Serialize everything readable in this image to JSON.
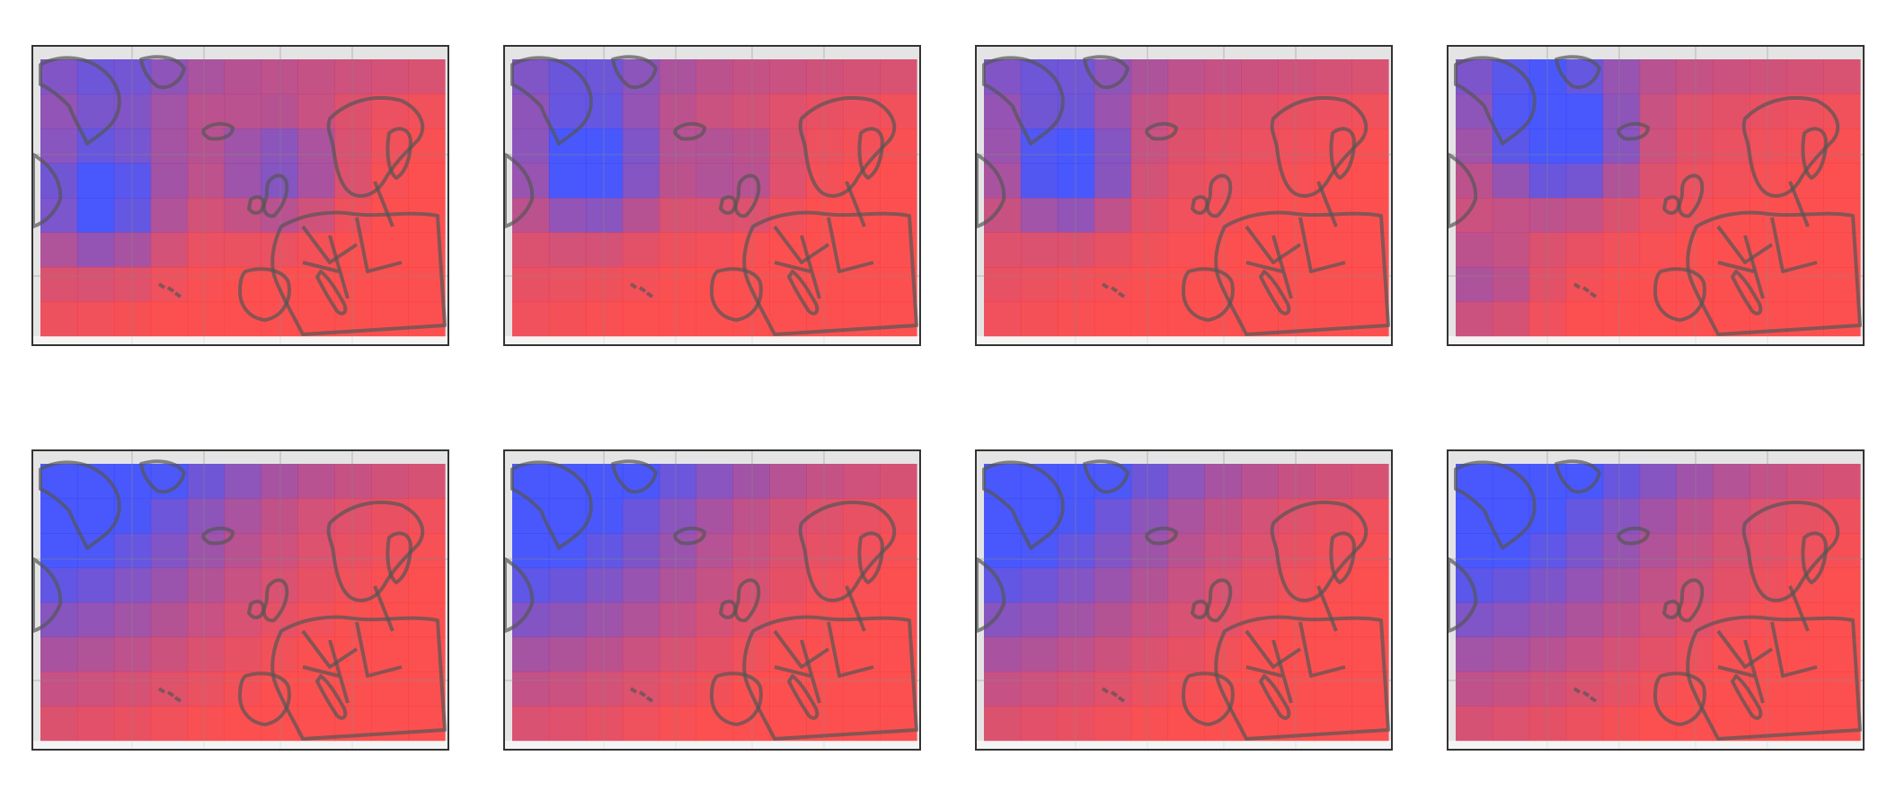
{
  "figure": {
    "rows": 2,
    "cols": 4,
    "colormap": {
      "low": "#3344ff",
      "high": "#ff3b3b"
    },
    "outline_color": "#555555",
    "background": "#ffffff"
  },
  "grid": {
    "nx": 11,
    "ny": 8
  },
  "panels": [
    {
      "id": "r1c1",
      "hotspots": [
        {
          "cx": 1.7,
          "cy": 4.1,
          "r": 1.2,
          "v": 0.9
        },
        {
          "cx": 6.5,
          "cy": 3.2,
          "r": 1.2,
          "v": 0.6
        },
        {
          "cx": 2.0,
          "cy": 1.0,
          "r": 1.5,
          "v": 0.4
        }
      ]
    },
    {
      "id": "r1c2",
      "hotspots": [
        {
          "cx": 2.2,
          "cy": 3.3,
          "r": 1.1,
          "v": 0.9
        },
        {
          "cx": 6.0,
          "cy": 3.2,
          "r": 1.0,
          "v": 0.35
        },
        {
          "cx": 2.0,
          "cy": 1.0,
          "r": 1.5,
          "v": 0.4
        }
      ]
    },
    {
      "id": "r1c3",
      "hotspots": [
        {
          "cx": 2.3,
          "cy": 3.3,
          "r": 1.0,
          "v": 0.9
        },
        {
          "cx": 2.0,
          "cy": 1.0,
          "r": 1.5,
          "v": 0.4
        }
      ]
    },
    {
      "id": "r1c4",
      "hotspots": [
        {
          "cx": 3.0,
          "cy": 2.4,
          "r": 1.2,
          "v": 0.9
        },
        {
          "cx": 0.8,
          "cy": 6.5,
          "r": 1.0,
          "v": 0.35
        },
        {
          "cx": 2.0,
          "cy": 1.0,
          "r": 1.5,
          "v": 0.4
        }
      ]
    },
    {
      "id": "r2c1",
      "hotspots": [
        {
          "cx": 0.0,
          "cy": 0.2,
          "r": 3.5,
          "v": 1.0
        }
      ]
    },
    {
      "id": "r2c2",
      "hotspots": [
        {
          "cx": 0.0,
          "cy": 0.2,
          "r": 3.6,
          "v": 1.0
        }
      ]
    },
    {
      "id": "r2c3",
      "hotspots": [
        {
          "cx": 0.0,
          "cy": 0.2,
          "r": 3.5,
          "v": 1.0
        }
      ]
    },
    {
      "id": "r2c4",
      "hotspots": [
        {
          "cx": 0.0,
          "cy": 0.2,
          "r": 3.7,
          "v": 1.0
        }
      ]
    }
  ]
}
